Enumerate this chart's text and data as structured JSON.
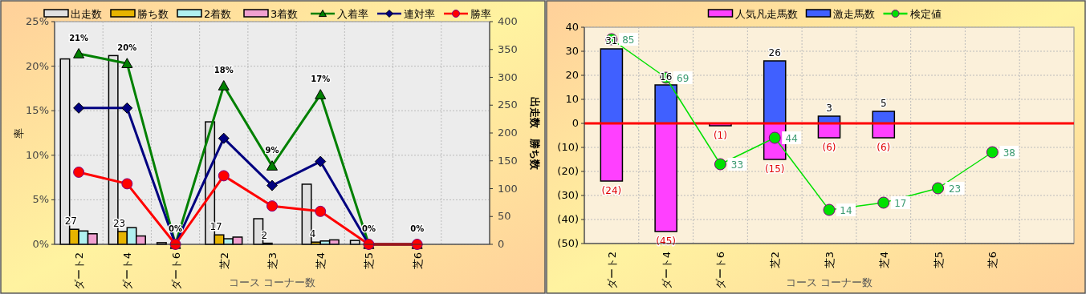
{
  "chart_data": [
    {
      "type": "bar",
      "xlabel": "コース コーナー数",
      "ylabel": "率",
      "y2label": "出走数　勝ち数",
      "categories": [
        "ダート2",
        "ダート4",
        "ダート6",
        "芝2",
        "芝3",
        "芝4",
        "芝5",
        "芝6",
        null
      ],
      "ylim": [
        0,
        25
      ],
      "yticks": [
        {
          "value": 0,
          "label": "0%"
        },
        {
          "value": 5,
          "label": "5%"
        },
        {
          "value": 10,
          "label": "10%"
        },
        {
          "value": 15,
          "label": "15%"
        },
        {
          "value": 20,
          "label": "20%"
        },
        {
          "value": 25,
          "label": "25%"
        }
      ],
      "y2lim": [
        0,
        400
      ],
      "y2ticks": [
        0,
        50,
        100,
        150,
        200,
        250,
        300,
        350,
        400
      ],
      "grid": true,
      "legend": "top",
      "series": [
        {
          "name": "出走数",
          "axis": "y2",
          "color": "#e0e0e0",
          "values": [
            333,
            339,
            3,
            220,
            46,
            108,
            7,
            null,
            null
          ]
        },
        {
          "name": "勝ち数",
          "axis": "y2",
          "color": "#e6b400",
          "values": [
            27,
            23,
            0,
            17,
            2,
            4,
            0,
            0,
            null
          ],
          "value_labels": [
            "27",
            "23",
            null,
            "17",
            "2",
            "4",
            null,
            null,
            null
          ]
        },
        {
          "name": "2着数",
          "axis": "y2",
          "color": "#b0f0f0",
          "values": [
            24,
            30,
            0,
            10,
            null,
            6,
            0,
            0,
            null
          ]
        },
        {
          "name": "3着数",
          "axis": "y2",
          "color": "#f0a0d0",
          "values": [
            19,
            15,
            0,
            13,
            null,
            8,
            0,
            0,
            null
          ]
        },
        {
          "name": "入着率",
          "type": "line",
          "color": "#008000",
          "marker": "triangle",
          "values": [
            21.4,
            20.3,
            0,
            17.8,
            8.8,
            16.8,
            0,
            0,
            null
          ],
          "value_labels": [
            "21%",
            "20%",
            "0%",
            "18%",
            "9%",
            "17%",
            "0%",
            "0%",
            null
          ]
        },
        {
          "name": "連対率",
          "type": "line",
          "color": "#000080",
          "marker": "diamond",
          "values": [
            15.3,
            15.3,
            0,
            11.9,
            6.6,
            9.3,
            0,
            0,
            null
          ]
        },
        {
          "name": "勝率",
          "type": "line",
          "color": "#ff0000",
          "marker": "circle",
          "values": [
            8.1,
            6.8,
            0,
            7.7,
            4.3,
            3.7,
            0,
            0,
            null
          ]
        }
      ]
    },
    {
      "type": "bar",
      "stacked": true,
      "xlabel": "コース コーナー数",
      "categories": [
        "ダート2",
        "ダート4",
        "ダート6",
        "芝2",
        "芝3",
        "芝4",
        "芝5",
        "芝6",
        null
      ],
      "ylim": [
        -50,
        40
      ],
      "yticks": [
        {
          "value": -50,
          "label": "(50)"
        },
        {
          "value": -40,
          "label": "(40)"
        },
        {
          "value": -30,
          "label": "(30)"
        },
        {
          "value": -20,
          "label": "(20)"
        },
        {
          "value": -10,
          "label": "(10)"
        },
        0,
        10,
        20,
        30,
        40
      ],
      "y2lim": [
        0,
        90
      ],
      "grid": true,
      "legend": "top",
      "ref_lines": [
        {
          "axis": "y",
          "value": 0,
          "color": "#ff0000"
        }
      ],
      "series": [
        {
          "name": "人気凡走馬数",
          "color": "#ff40ff",
          "values": [
            -24,
            -45,
            -1,
            -15,
            -6,
            -6,
            null,
            null,
            null
          ],
          "value_labels": [
            "(24)",
            "(45)",
            "(1)",
            "(15)",
            "(6)",
            "(6)",
            null,
            null,
            null
          ]
        },
        {
          "name": "激走馬数",
          "color": "#4060ff",
          "values": [
            31,
            16,
            null,
            26,
            3,
            5,
            null,
            null,
            null
          ],
          "value_labels": [
            "31",
            "16",
            null,
            "26",
            "3",
            "5",
            null,
            null,
            null
          ]
        },
        {
          "name": "検定値",
          "type": "line",
          "axis": "y2",
          "color": "#00e000",
          "marker": "circle",
          "values": [
            85,
            69,
            33,
            44,
            14,
            17,
            23,
            38,
            null
          ],
          "value_labels": [
            "85",
            "69",
            "33",
            "44",
            "14",
            "17",
            "23",
            "38",
            null
          ]
        }
      ]
    }
  ]
}
